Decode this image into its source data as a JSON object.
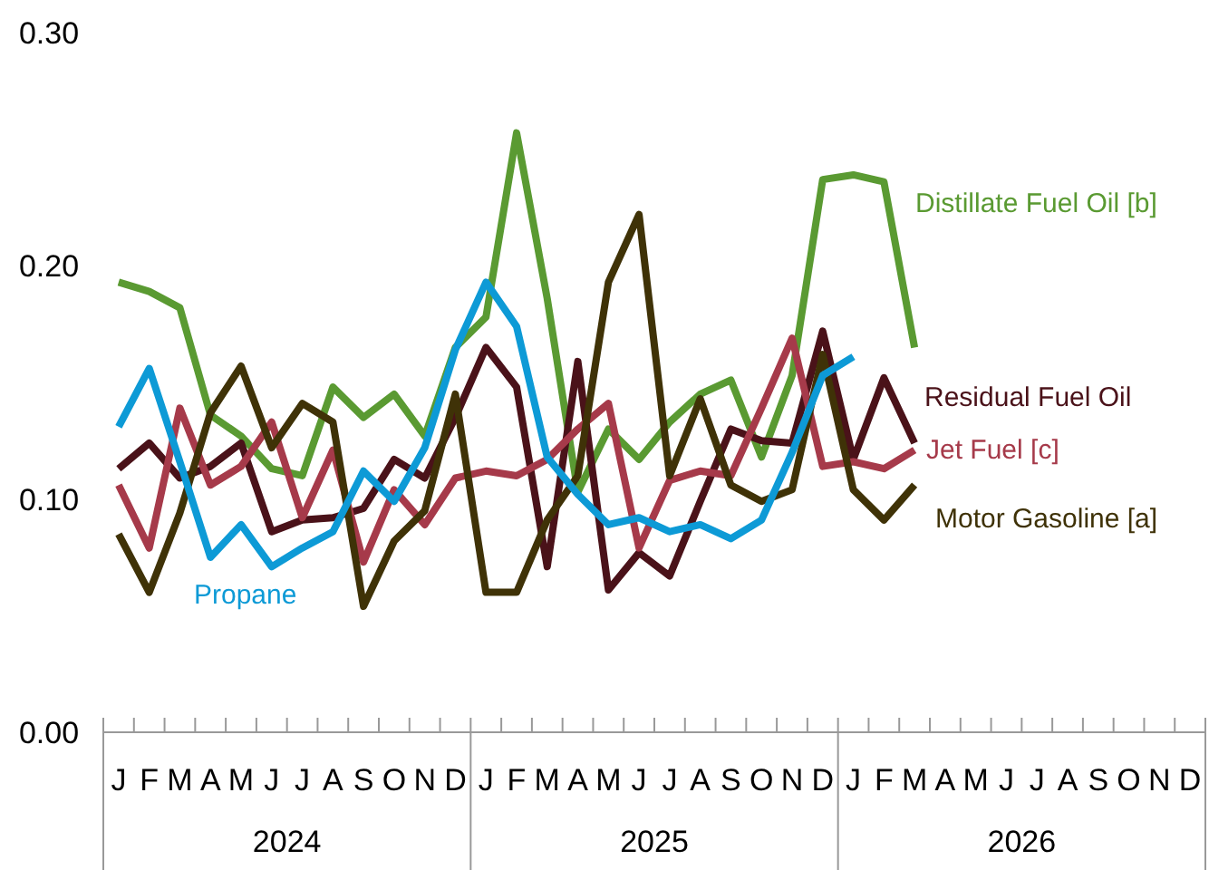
{
  "chart_data": {
    "type": "line",
    "categories": [
      "J",
      "F",
      "M",
      "A",
      "M",
      "J",
      "J",
      "A",
      "S",
      "O",
      "N",
      "D",
      "J",
      "F",
      "M",
      "A",
      "M",
      "J",
      "J",
      "A",
      "S",
      "O",
      "N",
      "D",
      "J",
      "F",
      "M",
      "A",
      "M",
      "J",
      "J",
      "A",
      "S",
      "O",
      "N",
      "D"
    ],
    "ylim": [
      0,
      0.3
    ],
    "yticks": [
      {
        "value": 0,
        "label": "0.00"
      },
      {
        "value": 0.1,
        "label": "0.10"
      },
      {
        "value": 0.2,
        "label": "0.20"
      },
      {
        "value": 0.3,
        "label": "0.30"
      }
    ],
    "annotations": [
      "2024",
      "2025",
      "2026"
    ],
    "series": [
      {
        "name": "Distillate Fuel Oil [b]",
        "color": "#5a9a32",
        "values": [
          0.193,
          0.189,
          0.182,
          0.136,
          0.127,
          0.113,
          0.11,
          0.148,
          0.135,
          0.145,
          0.127,
          0.165,
          0.178,
          0.257,
          0.186,
          0.103,
          0.13,
          0.117,
          0.133,
          0.145,
          0.151,
          0.118,
          0.153,
          0.237,
          0.239,
          0.236,
          0.165,
          null,
          null,
          null,
          null,
          null,
          null,
          null,
          null,
          null
        ]
      },
      {
        "name": "Residual Fuel Oil",
        "color": "#4a1219",
        "values": [
          0.113,
          0.124,
          0.109,
          0.114,
          0.124,
          0.086,
          0.091,
          0.092,
          0.096,
          0.117,
          0.109,
          0.135,
          0.165,
          0.148,
          0.071,
          0.159,
          0.061,
          0.077,
          0.067,
          0.099,
          0.13,
          0.125,
          0.124,
          0.172,
          0.117,
          0.152,
          0.124,
          null,
          null,
          null,
          null,
          null,
          null,
          null,
          null,
          null
        ]
      },
      {
        "name": "Jet Fuel [c]",
        "color": "#a63a4a",
        "values": [
          0.106,
          0.079,
          0.139,
          0.106,
          0.114,
          0.133,
          0.092,
          0.121,
          0.073,
          0.104,
          0.089,
          0.109,
          0.112,
          0.11,
          0.117,
          0.13,
          0.141,
          0.079,
          0.108,
          0.112,
          0.11,
          0.139,
          0.169,
          0.114,
          0.116,
          0.113,
          0.121,
          null,
          null,
          null,
          null,
          null,
          null,
          null,
          null,
          null
        ]
      },
      {
        "name": "Motor Gasoline [a]",
        "color": "#3f3207",
        "values": [
          0.085,
          0.06,
          0.094,
          0.137,
          0.157,
          0.122,
          0.141,
          0.133,
          0.054,
          0.082,
          0.095,
          0.145,
          0.06,
          0.06,
          0.091,
          0.11,
          0.193,
          0.222,
          0.11,
          0.143,
          0.106,
          0.099,
          0.104,
          0.162,
          0.104,
          0.091,
          0.106,
          null,
          null,
          null,
          null,
          null,
          null,
          null,
          null,
          null
        ]
      },
      {
        "name": "Propane",
        "color": "#0d9ad6",
        "values": [
          0.131,
          0.156,
          0.116,
          0.075,
          0.089,
          0.071,
          0.079,
          0.086,
          0.112,
          0.099,
          0.122,
          0.164,
          0.193,
          0.174,
          0.118,
          0.102,
          0.089,
          0.092,
          0.086,
          0.089,
          0.083,
          0.091,
          0.12,
          0.153,
          0.161,
          null,
          null,
          null,
          null,
          null,
          null,
          null,
          null,
          null,
          null,
          null
        ]
      }
    ]
  }
}
